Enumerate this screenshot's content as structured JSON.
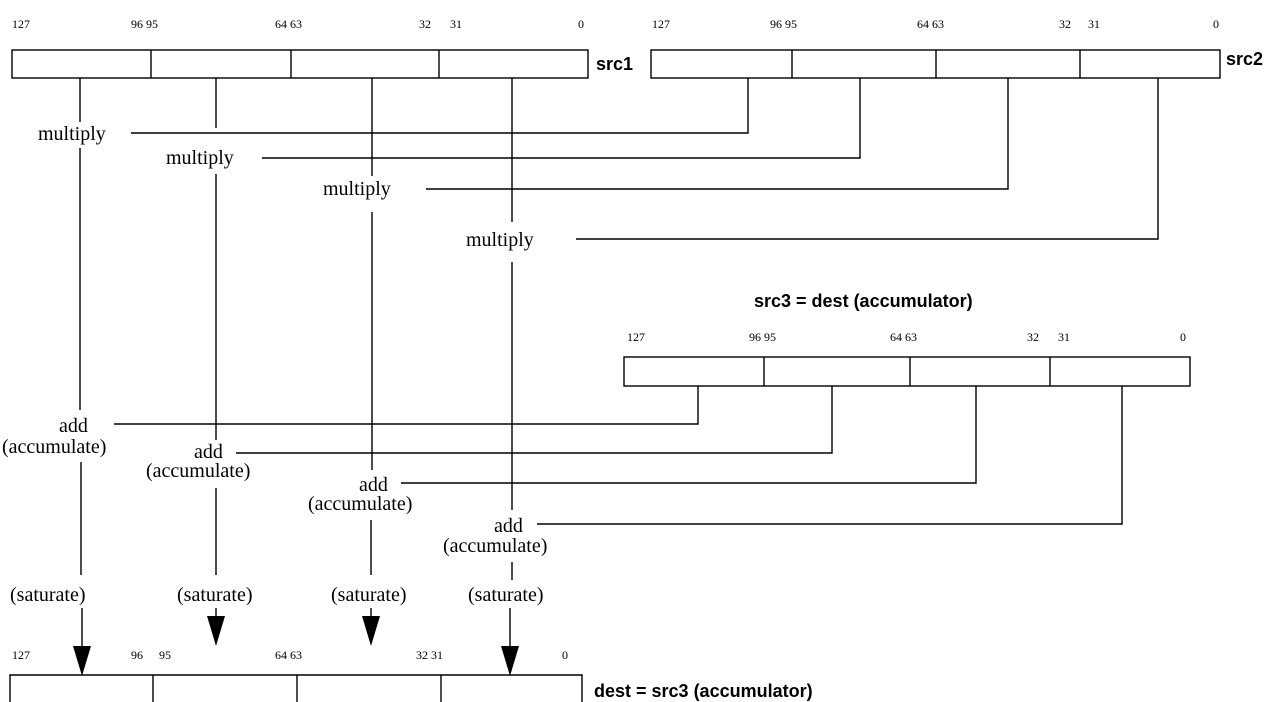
{
  "src1": {
    "label": "src1",
    "ticks": [
      "127",
      "96 95",
      "64 63",
      "32",
      "31",
      "0"
    ]
  },
  "src2": {
    "label": "src2",
    "ticks": [
      "127",
      "96 95",
      "64 63",
      "32",
      "31",
      "0"
    ]
  },
  "src3": {
    "title": "src3 = dest (accumulator)",
    "ticks": [
      "127",
      "96 95",
      "64 63",
      "32",
      "31",
      "0"
    ]
  },
  "dest": {
    "label": "dest = src3 (accumulator)",
    "ticks": [
      "127",
      "96",
      "95",
      "64 63",
      "32 31",
      "0"
    ]
  },
  "ops": {
    "multiply": [
      "multiply",
      "multiply",
      "multiply",
      "multiply"
    ],
    "add": [
      "add",
      "add",
      "add",
      "add"
    ],
    "accumulate": [
      "(accumulate)",
      "(accumulate)",
      "(accumulate)",
      "(accumulate)"
    ],
    "saturate": [
      "(saturate)",
      "(saturate)",
      "(saturate)",
      "(saturate)"
    ]
  }
}
